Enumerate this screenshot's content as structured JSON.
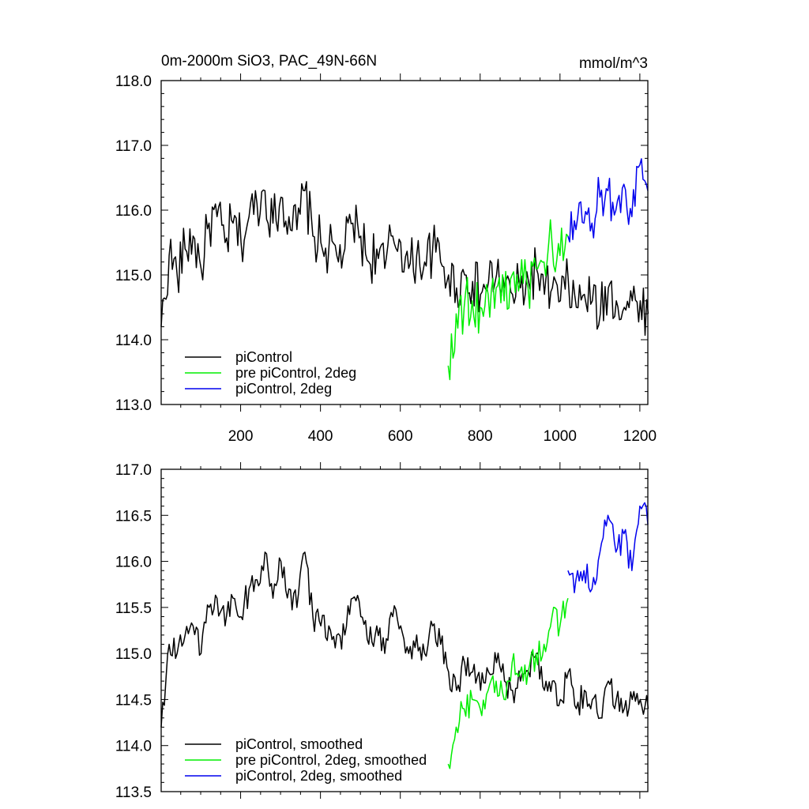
{
  "chart_data": [
    {
      "type": "line",
      "title": "0m-2000m SiO3, PAC_49N-66N",
      "units": "mmol/m^3",
      "xlim": [
        1,
        1220
      ],
      "ylim": [
        113.0,
        118.0
      ],
      "x_ticks": [
        200,
        400,
        600,
        800,
        1000,
        1200
      ],
      "y_ticks": [
        113.0,
        114.0,
        115.0,
        116.0,
        117.0,
        118.0
      ],
      "y_tick_labels": [
        "113.0",
        "114.0",
        "115.0",
        "116.0",
        "117.0",
        "118.0"
      ],
      "legend_position": "bottom-left",
      "series": [
        {
          "name": "piControl",
          "color": "#000000",
          "x_start": 1,
          "x_step": 20,
          "values": [
            114.2,
            115.3,
            115.0,
            115.4,
            115.6,
            115.1,
            115.8,
            115.9,
            115.5,
            115.8,
            115.5,
            115.9,
            116.1,
            116.3,
            115.8,
            116.2,
            115.9,
            115.7,
            116.3,
            115.6,
            115.5,
            115.4,
            115.3,
            115.4,
            115.8,
            115.6,
            115.2,
            115.4,
            115.1,
            115.6,
            115.5,
            115.1,
            115.3,
            115.2,
            115.4,
            115.2,
            115.0,
            114.8,
            115.0,
            114.9,
            114.7,
            114.9,
            115.0,
            114.8,
            114.7,
            114.8,
            114.9,
            115.1,
            114.7,
            114.8,
            114.6,
            114.9,
            114.5,
            114.7,
            114.6,
            114.4,
            114.8,
            114.6,
            114.5,
            114.6,
            114.6,
            114.4
          ]
        },
        {
          "name": "pre piControl, 2deg",
          "color": "#00ee00",
          "x_start": 720,
          "x_step": 20,
          "values": [
            113.6,
            114.4,
            114.5,
            114.6,
            114.5,
            114.7,
            114.8,
            114.6,
            115.0,
            114.9,
            114.8,
            115.1,
            115.2,
            115.5,
            115.3,
            115.6
          ]
        },
        {
          "name": "piControl, 2deg",
          "color": "#0000ee",
          "x_start": 1020,
          "x_step": 20,
          "values": [
            115.6,
            115.7,
            115.8,
            115.8,
            116.2,
            116.3,
            116.0,
            116.4,
            115.9,
            116.7,
            116.3
          ]
        }
      ]
    },
    {
      "type": "line",
      "title": "",
      "xlim": [
        1,
        1220
      ],
      "ylim": [
        113.5,
        117.0
      ],
      "x_ticks": [
        200,
        400,
        600,
        800,
        1000,
        1200
      ],
      "y_ticks": [
        113.5,
        114.0,
        114.5,
        115.0,
        115.5,
        116.0,
        116.5,
        117.0
      ],
      "y_tick_labels": [
        "113.5",
        "114.0",
        "114.5",
        "115.0",
        "115.5",
        "116.0",
        "116.5",
        "117.0"
      ],
      "legend_position": "bottom-left",
      "series": [
        {
          "name": "piControl, smoothed",
          "color": "#000000",
          "x_start": 1,
          "x_step": 20,
          "values": [
            114.2,
            115.1,
            115.0,
            115.2,
            115.3,
            115.0,
            115.5,
            115.6,
            115.3,
            115.6,
            115.4,
            115.7,
            115.8,
            116.1,
            115.6,
            116.0,
            115.7,
            115.5,
            116.1,
            115.4,
            115.3,
            115.3,
            115.2,
            115.2,
            115.6,
            115.4,
            115.1,
            115.3,
            115.0,
            115.4,
            115.3,
            115.0,
            115.2,
            115.0,
            115.3,
            115.1,
            114.8,
            114.6,
            114.9,
            114.8,
            114.6,
            114.8,
            114.9,
            114.7,
            114.6,
            114.7,
            114.8,
            115.0,
            114.6,
            114.7,
            114.5,
            114.8,
            114.4,
            114.6,
            114.5,
            114.3,
            114.7,
            114.5,
            114.4,
            114.5,
            114.5,
            114.4
          ]
        },
        {
          "name": "pre piControl, 2deg, smoothed",
          "color": "#00ee00",
          "x_start": 720,
          "x_step": 20,
          "values": [
            113.8,
            114.2,
            114.4,
            114.5,
            114.4,
            114.6,
            114.7,
            114.5,
            114.9,
            114.8,
            114.8,
            115.0,
            115.1,
            115.4,
            115.3,
            115.6
          ]
        },
        {
          "name": "piControl, 2deg, smoothed",
          "color": "#0000ee",
          "x_start": 1020,
          "x_step": 20,
          "values": [
            115.9,
            115.8,
            115.9,
            115.7,
            116.1,
            116.5,
            116.1,
            116.3,
            115.9,
            116.6,
            116.4
          ]
        }
      ]
    }
  ]
}
